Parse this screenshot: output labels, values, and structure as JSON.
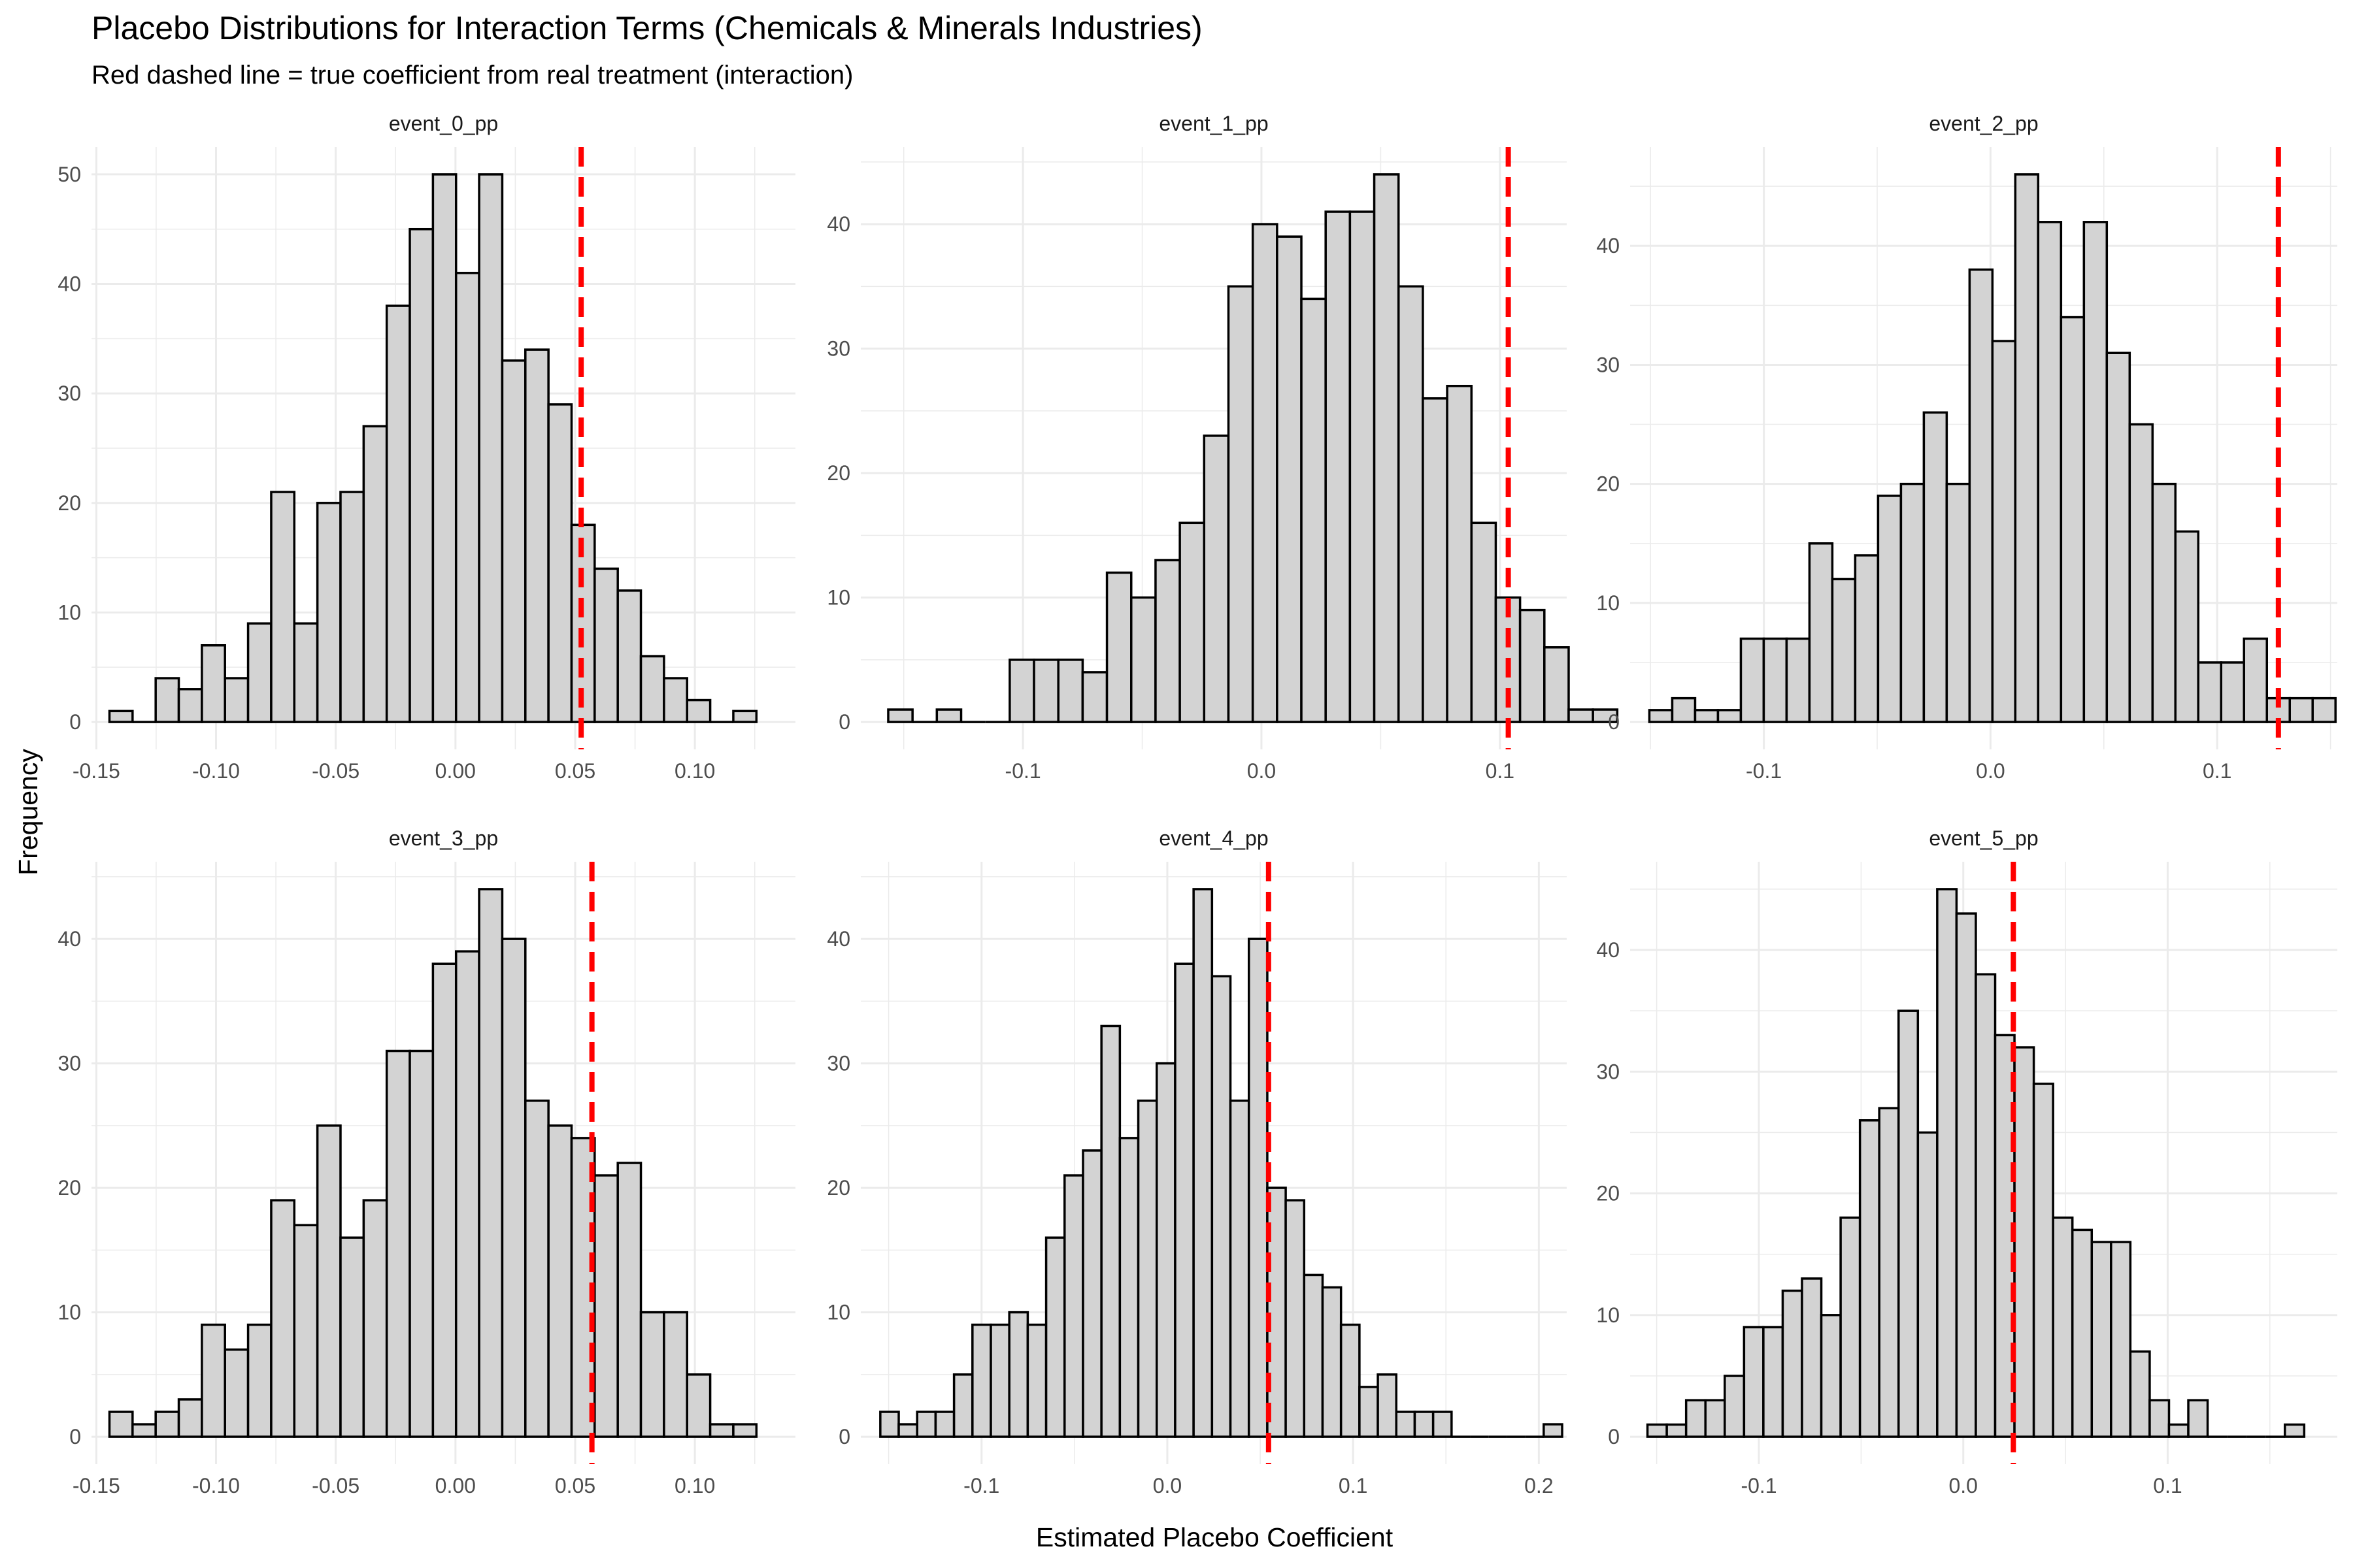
{
  "title": "Placebo Distributions for Interaction Terms (Chemicals & Minerals Industries)",
  "subtitle": "Red dashed line = true coefficient from real treatment (interaction)",
  "xlabel": "Estimated Placebo Coefficient",
  "ylabel": "Frequency",
  "colors": {
    "bar_fill": "#d3d3d3",
    "bar_stroke": "#000000",
    "true_line": "#ff0000",
    "grid": "#ebebeb"
  },
  "chart_data": [
    {
      "type": "bar",
      "panel": "event_0_pp",
      "xlim": [
        -0.152,
        0.142
      ],
      "ylim": [
        -2.5,
        52.5
      ],
      "xticks": [
        -0.15,
        -0.1,
        -0.05,
        0.0,
        0.05,
        0.1
      ],
      "xtick_labels": [
        "-0.15",
        "-0.10",
        "-0.05",
        "0.00",
        "0.05",
        "0.10"
      ],
      "yticks": [
        0,
        10,
        20,
        30,
        40,
        50
      ],
      "bins": {
        "start": -0.1445,
        "width": 0.00965
      },
      "counts": [
        1,
        0,
        4,
        3,
        7,
        4,
        9,
        21,
        9,
        20,
        21,
        27,
        38,
        45,
        50,
        41,
        50,
        33,
        34,
        29,
        18,
        14,
        12,
        6,
        4,
        2,
        0,
        1
      ],
      "true_coef": 0.0525
    },
    {
      "type": "bar",
      "panel": "event_1_pp",
      "xlim": [
        -0.168,
        0.128
      ],
      "ylim": [
        -2.2,
        46.2
      ],
      "xticks": [
        -0.1,
        0.0,
        0.1
      ],
      "xtick_labels": [
        "-0.1",
        "0.0",
        "0.1"
      ],
      "yticks": [
        0,
        10,
        20,
        30,
        40
      ],
      "bins": {
        "start": -0.1565,
        "width": 0.01019
      },
      "counts": [
        1,
        0,
        1,
        0,
        0,
        5,
        5,
        5,
        4,
        12,
        10,
        13,
        16,
        23,
        35,
        40,
        39,
        34,
        41,
        41,
        44,
        35,
        26,
        27,
        16,
        10,
        9,
        6,
        1,
        1
      ],
      "true_coef": 0.1035
    },
    {
      "type": "bar",
      "panel": "event_2_pp",
      "xlim": [
        -0.159,
        0.153
      ],
      "ylim": [
        -2.3,
        48.3
      ],
      "xticks": [
        -0.1,
        0.0,
        0.1
      ],
      "xtick_labels": [
        "-0.1",
        "0.0",
        "0.1"
      ],
      "yticks": [
        0,
        10,
        20,
        30,
        40
      ],
      "bins": {
        "start": -0.1505,
        "width": 0.01009
      },
      "counts": [
        1,
        2,
        1,
        1,
        7,
        7,
        7,
        15,
        12,
        14,
        19,
        20,
        26,
        20,
        38,
        32,
        46,
        42,
        34,
        42,
        31,
        25,
        20,
        16,
        5,
        5,
        7,
        2,
        2,
        2
      ],
      "true_coef": 0.127
    },
    {
      "type": "bar",
      "panel": "event_3_pp",
      "xlim": [
        -0.152,
        0.142
      ],
      "ylim": [
        -2.2,
        46.2
      ],
      "xticks": [
        -0.15,
        -0.1,
        -0.05,
        0.0,
        0.05,
        0.1
      ],
      "xtick_labels": [
        "-0.15",
        "-0.10",
        "-0.05",
        "0.00",
        "0.05",
        "0.10"
      ],
      "yticks": [
        0,
        10,
        20,
        30,
        40
      ],
      "bins": {
        "start": -0.1445,
        "width": 0.00965
      },
      "counts": [
        2,
        1,
        2,
        3,
        9,
        7,
        9,
        19,
        17,
        25,
        16,
        19,
        31,
        31,
        38,
        39,
        44,
        40,
        27,
        25,
        24,
        21,
        22,
        10,
        10,
        5,
        1,
        1
      ],
      "true_coef": 0.057
    },
    {
      "type": "bar",
      "panel": "event_4_pp",
      "xlim": [
        -0.165,
        0.215
      ],
      "ylim": [
        -2.2,
        46.2
      ],
      "xticks": [
        -0.1,
        0.0,
        0.1,
        0.2
      ],
      "xtick_labels": [
        "-0.1",
        "0.0",
        "0.1",
        "0.2"
      ],
      "yticks": [
        0,
        10,
        20,
        30,
        40
      ],
      "bins": {
        "start": -0.1545,
        "width": 0.00992
      },
      "counts": [
        2,
        1,
        2,
        2,
        5,
        9,
        9,
        10,
        9,
        16,
        21,
        23,
        33,
        24,
        27,
        30,
        38,
        44,
        37,
        27,
        40,
        20,
        19,
        13,
        12,
        9,
        4,
        5,
        2,
        2,
        2,
        0,
        0,
        0,
        0,
        0,
        1
      ],
      "true_coef": 0.0545
    },
    {
      "type": "bar",
      "panel": "event_5_pp",
      "xlim": [
        -0.163,
        0.183
      ],
      "ylim": [
        -2.25,
        47.25
      ],
      "xticks": [
        -0.1,
        0.0,
        0.1
      ],
      "xtick_labels": [
        "-0.1",
        "0.0",
        "0.1"
      ],
      "yticks": [
        0,
        10,
        20,
        30,
        40
      ],
      "bins": {
        "start": -0.1545,
        "width": 0.00945
      },
      "counts": [
        1,
        1,
        3,
        3,
        5,
        9,
        9,
        12,
        13,
        10,
        18,
        26,
        27,
        35,
        25,
        45,
        43,
        38,
        33,
        32,
        29,
        18,
        17,
        16,
        16,
        7,
        3,
        1,
        3,
        0,
        0,
        0,
        0,
        1
      ],
      "true_coef": 0.0245
    }
  ]
}
